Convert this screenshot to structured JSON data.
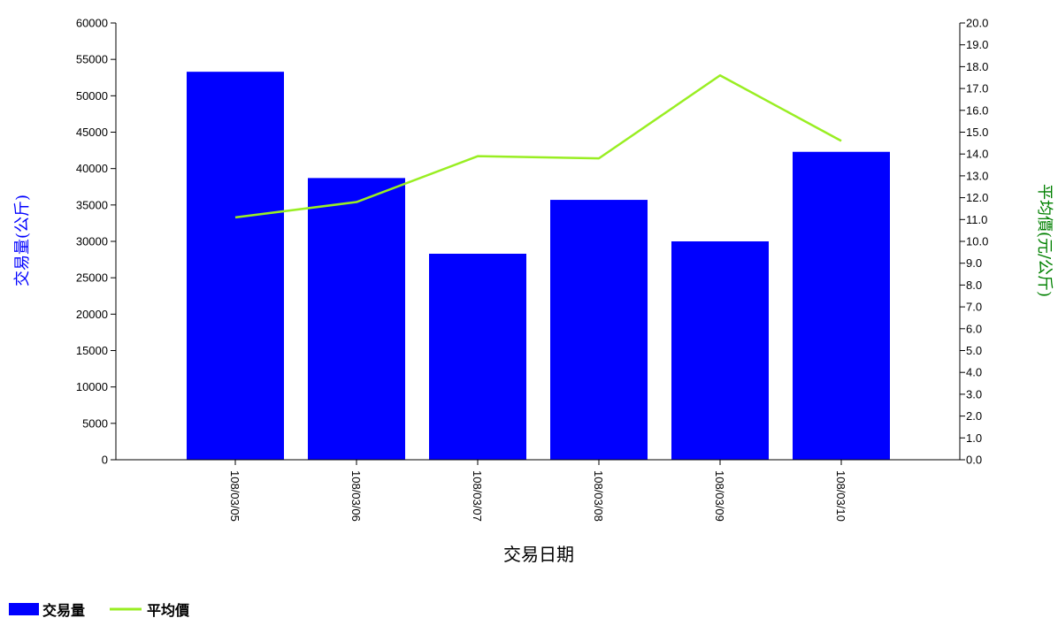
{
  "chart_data": {
    "type": "bar",
    "categories": [
      "108/03/05",
      "108/03/06",
      "108/03/07",
      "108/03/08",
      "108/03/09",
      "108/03/10"
    ],
    "series": [
      {
        "name": "交易量",
        "type": "bar",
        "axis": "left",
        "color": "#0000ff",
        "values": [
          53300,
          38700,
          28300,
          35700,
          30000,
          42300
        ]
      },
      {
        "name": "平均價",
        "type": "line",
        "axis": "right",
        "color": "#99ee22",
        "values": [
          11.1,
          11.8,
          13.9,
          13.8,
          17.6,
          14.6
        ]
      }
    ],
    "xlabel": "交易日期",
    "ylabel": "交易量(公斤)",
    "ylabel_right": "平均價(元/公斤)",
    "ylim": [
      0,
      60000
    ],
    "ylim_right": [
      0,
      20.0
    ],
    "yticks": [
      0,
      5000,
      10000,
      15000,
      20000,
      25000,
      30000,
      35000,
      40000,
      45000,
      50000,
      55000,
      60000
    ],
    "yticks_right": [
      0.0,
      1.0,
      2.0,
      3.0,
      4.0,
      5.0,
      6.0,
      7.0,
      8.0,
      9.0,
      10.0,
      11.0,
      12.0,
      13.0,
      14.0,
      15.0,
      16.0,
      17.0,
      18.0,
      19.0,
      20.0
    ],
    "ylabel_color": "#0000ff",
    "ylabel_right_color": "#008000",
    "grid": false,
    "legend": "bottom-left"
  }
}
